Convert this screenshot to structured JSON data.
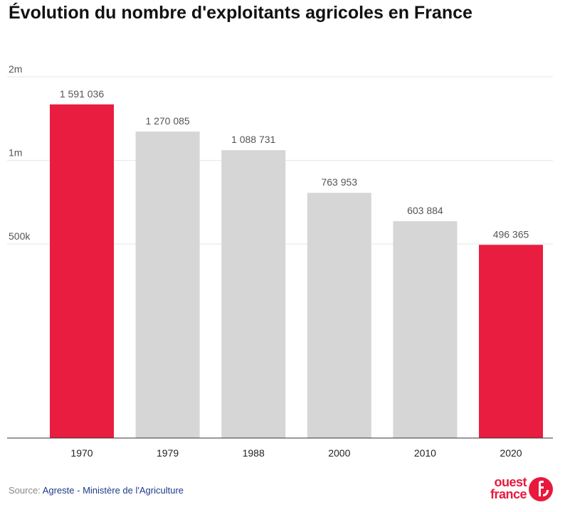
{
  "title": "Évolution du nombre d'exploitants agricoles en France",
  "source": {
    "label": "Source: ",
    "link1": "Agreste",
    "separator": " - ",
    "link2": "Ministère de l'Agriculture"
  },
  "logo": {
    "line1": "ouest",
    "line2": "france"
  },
  "colors": {
    "highlight": "#e81d3f",
    "normal": "#d6d6d6",
    "grid": "#e6e6e6",
    "axis": "#333333",
    "label": "#555555"
  },
  "chart_data": {
    "type": "bar",
    "categories": [
      "1970",
      "1979",
      "1988",
      "2000",
      "2010",
      "2020"
    ],
    "values": [
      1591036,
      1270085,
      1088731,
      763953,
      603884,
      496365
    ],
    "value_labels": [
      "1 591 036",
      "1 270 085",
      "1 088 731",
      "763 953",
      "603 884",
      "496 365"
    ],
    "highlighted": [
      true,
      false,
      false,
      false,
      false,
      true
    ],
    "yticks": [
      {
        "value": 500000,
        "label": "500k"
      },
      {
        "value": 1000000,
        "label": "1m"
      },
      {
        "value": 2000000,
        "label": "2m"
      }
    ],
    "yscale": "log",
    "ylim": [
      100000,
      2000000
    ],
    "grid": true
  }
}
